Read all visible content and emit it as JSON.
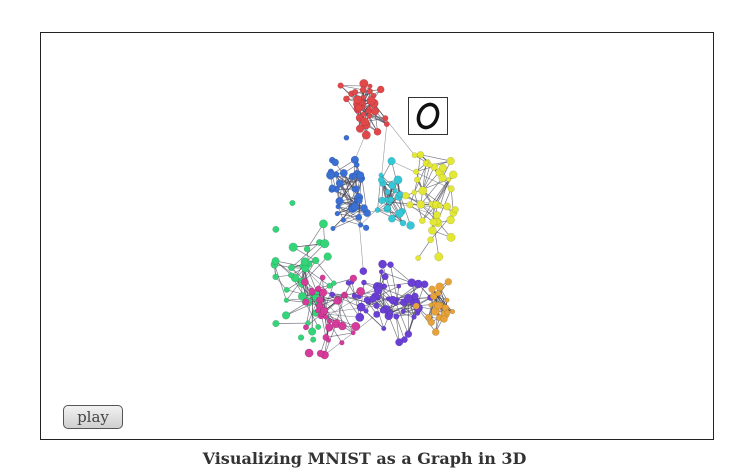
{
  "viewer": {
    "play_label": "play",
    "hovered_digit": "0"
  },
  "caption": "Visualizing MNIST as a Graph in 3D",
  "clusters": [
    {
      "name": "red-cluster",
      "color": "#e0484a"
    },
    {
      "name": "blue-cluster",
      "color": "#3a6fd4"
    },
    {
      "name": "yellow-cluster",
      "color": "#e3e835"
    },
    {
      "name": "green-cluster",
      "color": "#34d479"
    },
    {
      "name": "purple-cluster",
      "color": "#6a3fd6"
    },
    {
      "name": "magenta-cluster",
      "color": "#d63a9a"
    },
    {
      "name": "orange-cluster",
      "color": "#e7a33a"
    },
    {
      "name": "cyan-cluster",
      "color": "#36c7d6"
    }
  ]
}
